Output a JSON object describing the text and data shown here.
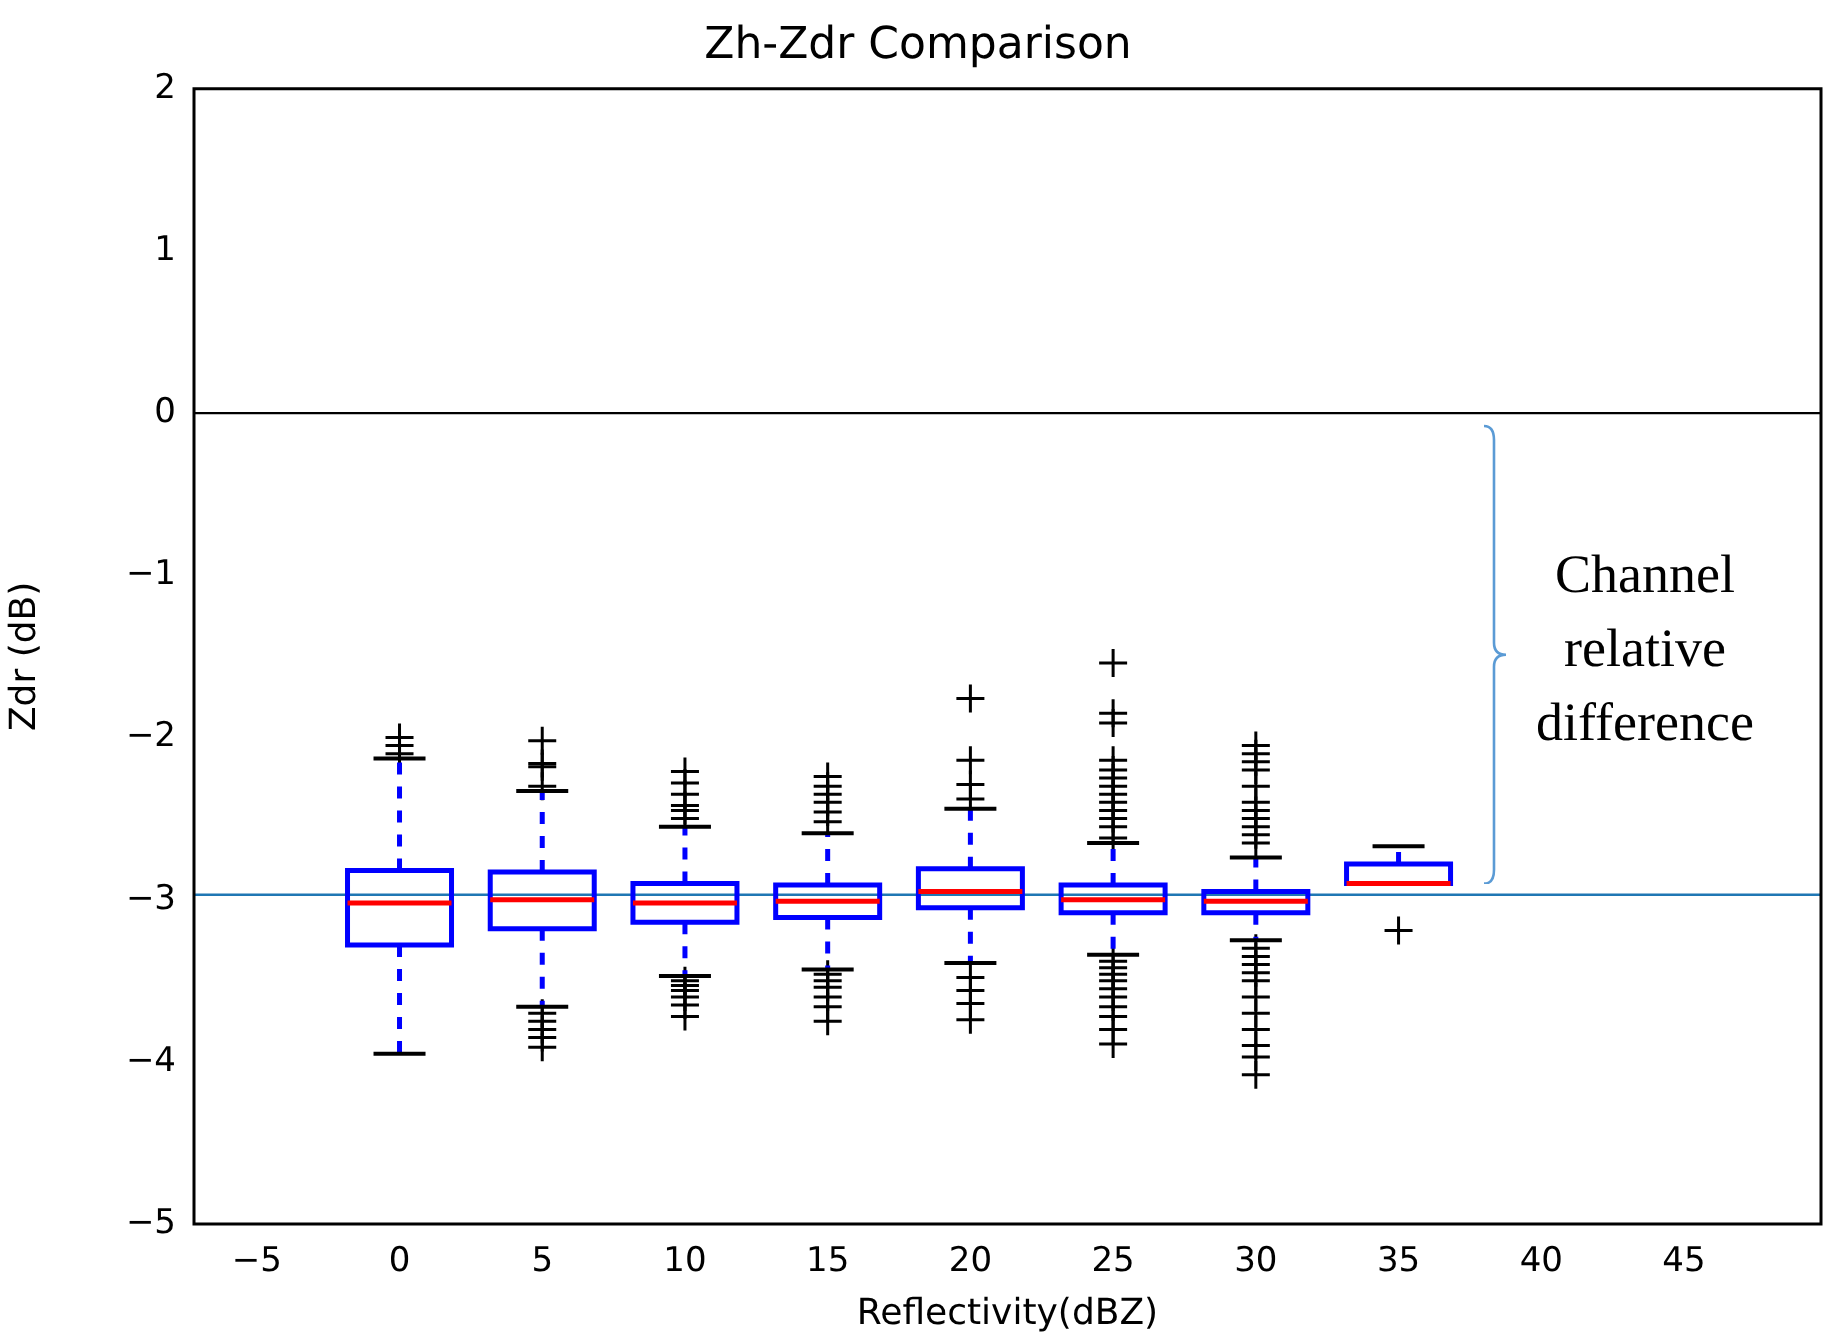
{
  "chart_data": {
    "type": "box",
    "title": "Zh-Zdr Comparison",
    "xlabel": "Reflectivity(dBZ)",
    "ylabel": "Zdr (dB)",
    "x": [
      0,
      5,
      10,
      15,
      20,
      25,
      30,
      35
    ],
    "xlim": [
      -7.2,
      49.8
    ],
    "xticks": [
      -5,
      0,
      5,
      10,
      15,
      20,
      25,
      30,
      35,
      40,
      45
    ],
    "ylim": [
      -5,
      2
    ],
    "yticks": [
      -5,
      -4,
      -3,
      -2,
      -1,
      0,
      1,
      2
    ],
    "grid": false,
    "legend": false,
    "marker": "cross",
    "line_style": "dashed",
    "series": [
      {
        "color": "#0000ff",
        "boxes": [
          {
            "low": -3.95,
            "q1": -3.28,
            "median": -3.02,
            "q3": -2.82,
            "high": -2.13,
            "outliers": [
              -2.0,
              -2.05,
              -2.1
            ]
          },
          {
            "low": -3.66,
            "q1": -3.18,
            "median": -3.0,
            "q3": -2.83,
            "high": -2.33,
            "outliers": [
              -2.02,
              -2.16,
              -2.18,
              -2.3,
              -3.7,
              -3.75,
              -3.8,
              -3.85,
              -3.91
            ]
          },
          {
            "low": -3.47,
            "q1": -3.14,
            "median": -3.02,
            "q3": -2.9,
            "high": -2.55,
            "outliers": [
              -2.21,
              -2.28,
              -2.35,
              -2.42,
              -2.45,
              -2.5,
              -3.5,
              -3.53,
              -3.56,
              -3.6,
              -3.65,
              -3.72
            ]
          },
          {
            "low": -3.43,
            "q1": -3.11,
            "median": -3.01,
            "q3": -2.91,
            "high": -2.59,
            "outliers": [
              -2.24,
              -2.3,
              -2.35,
              -2.4,
              -2.46,
              -2.52,
              -3.46,
              -3.5,
              -3.54,
              -3.6,
              -3.66,
              -3.75
            ]
          },
          {
            "low": -3.39,
            "q1": -3.05,
            "median": -2.95,
            "q3": -2.81,
            "high": -2.44,
            "outliers": [
              -1.76,
              -2.14,
              -2.29,
              -2.38,
              -3.48,
              -3.56,
              -3.64,
              -3.74
            ]
          },
          {
            "low": -3.34,
            "q1": -3.08,
            "median": -3.0,
            "q3": -2.91,
            "high": -2.65,
            "outliers": [
              -1.54,
              -1.85,
              -1.91,
              -2.14,
              -2.2,
              -2.25,
              -2.3,
              -2.35,
              -2.4,
              -2.45,
              -2.5,
              -2.55,
              -2.62,
              -3.38,
              -3.42,
              -3.46,
              -3.5,
              -3.55,
              -3.6,
              -3.66,
              -3.72,
              -3.8,
              -3.89
            ]
          },
          {
            "low": -3.25,
            "q1": -3.08,
            "median": -3.01,
            "q3": -2.95,
            "high": -2.74,
            "outliers": [
              -2.05,
              -2.1,
              -2.15,
              -2.2,
              -2.3,
              -2.4,
              -2.45,
              -2.5,
              -2.55,
              -2.6,
              -2.65,
              -3.3,
              -3.35,
              -3.4,
              -3.45,
              -3.5,
              -3.6,
              -3.7,
              -3.8,
              -3.9,
              -3.97,
              -4.08
            ]
          },
          {
            "low": -2.9,
            "q1": -2.9,
            "median": -2.9,
            "q3": -2.78,
            "high": -2.67,
            "outliers": [
              -3.19
            ]
          }
        ]
      }
    ],
    "ref_lines": [
      {
        "axis": "y",
        "value": 0,
        "color": "#000000"
      },
      {
        "axis": "y",
        "value": -2.97,
        "color": "#1f77b4"
      }
    ],
    "annotations": [
      "Channel relative difference"
    ]
  }
}
